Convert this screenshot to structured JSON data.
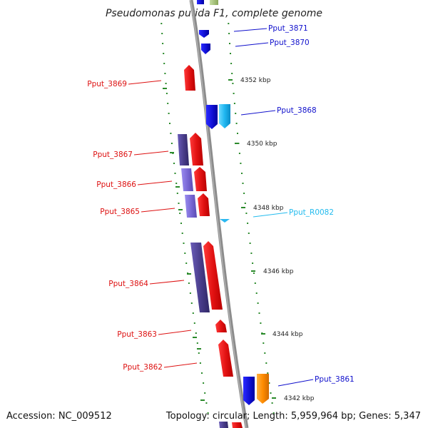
{
  "header": {
    "title": "Pseudomonas putida F1, complete genome"
  },
  "footer": {
    "accession": "Accession: NC_009512",
    "topology": "Topology: circular; Length: 5,959,964 bp; Genes: 5,347"
  },
  "map": {
    "backbone_color": "#8c8c8c",
    "tick_color": "#2a8a2a",
    "position_ticks": [
      {
        "label": "4352 kbp"
      },
      {
        "label": "4350 kbp"
      },
      {
        "label": "4348 kbp"
      },
      {
        "label": "4346 kbp"
      },
      {
        "label": "4344 kbp"
      },
      {
        "label": "4342 kbp"
      }
    ],
    "gene_labels": [
      {
        "name": "Pput_3871",
        "color": "#1010cc",
        "strand": "minus"
      },
      {
        "name": "Pput_3870",
        "color": "#1010cc",
        "strand": "minus"
      },
      {
        "name": "Pput_3869",
        "color": "#dd1111",
        "strand": "plus"
      },
      {
        "name": "Pput_3868",
        "color": "#1010cc",
        "strand": "minus"
      },
      {
        "name": "Pput_3867",
        "color": "#dd1111",
        "strand": "plus"
      },
      {
        "name": "Pput_3866",
        "color": "#dd1111",
        "strand": "plus"
      },
      {
        "name": "Pput_3865",
        "color": "#dd1111",
        "strand": "plus"
      },
      {
        "name": "Pput_R0082",
        "color": "#22bbee",
        "strand": "minus"
      },
      {
        "name": "Pput_3864",
        "color": "#dd1111",
        "strand": "plus"
      },
      {
        "name": "Pput_3863",
        "color": "#dd1111",
        "strand": "plus"
      },
      {
        "name": "Pput_3862",
        "color": "#dd1111",
        "strand": "plus"
      },
      {
        "name": "Pput_3861",
        "color": "#1010cc",
        "strand": "minus"
      }
    ],
    "feature_colors": {
      "plus_gene": "#e61111",
      "minus_gene": "#1515d8",
      "plus_cds": "#4a3e8c",
      "plus_cds_light": "#7b6ad6",
      "minus_cds": "#1fb6f0",
      "minus_rna": "#2bb8f0",
      "minus_orange": "#ff8c00",
      "top_green": "#a8c47a"
    }
  }
}
